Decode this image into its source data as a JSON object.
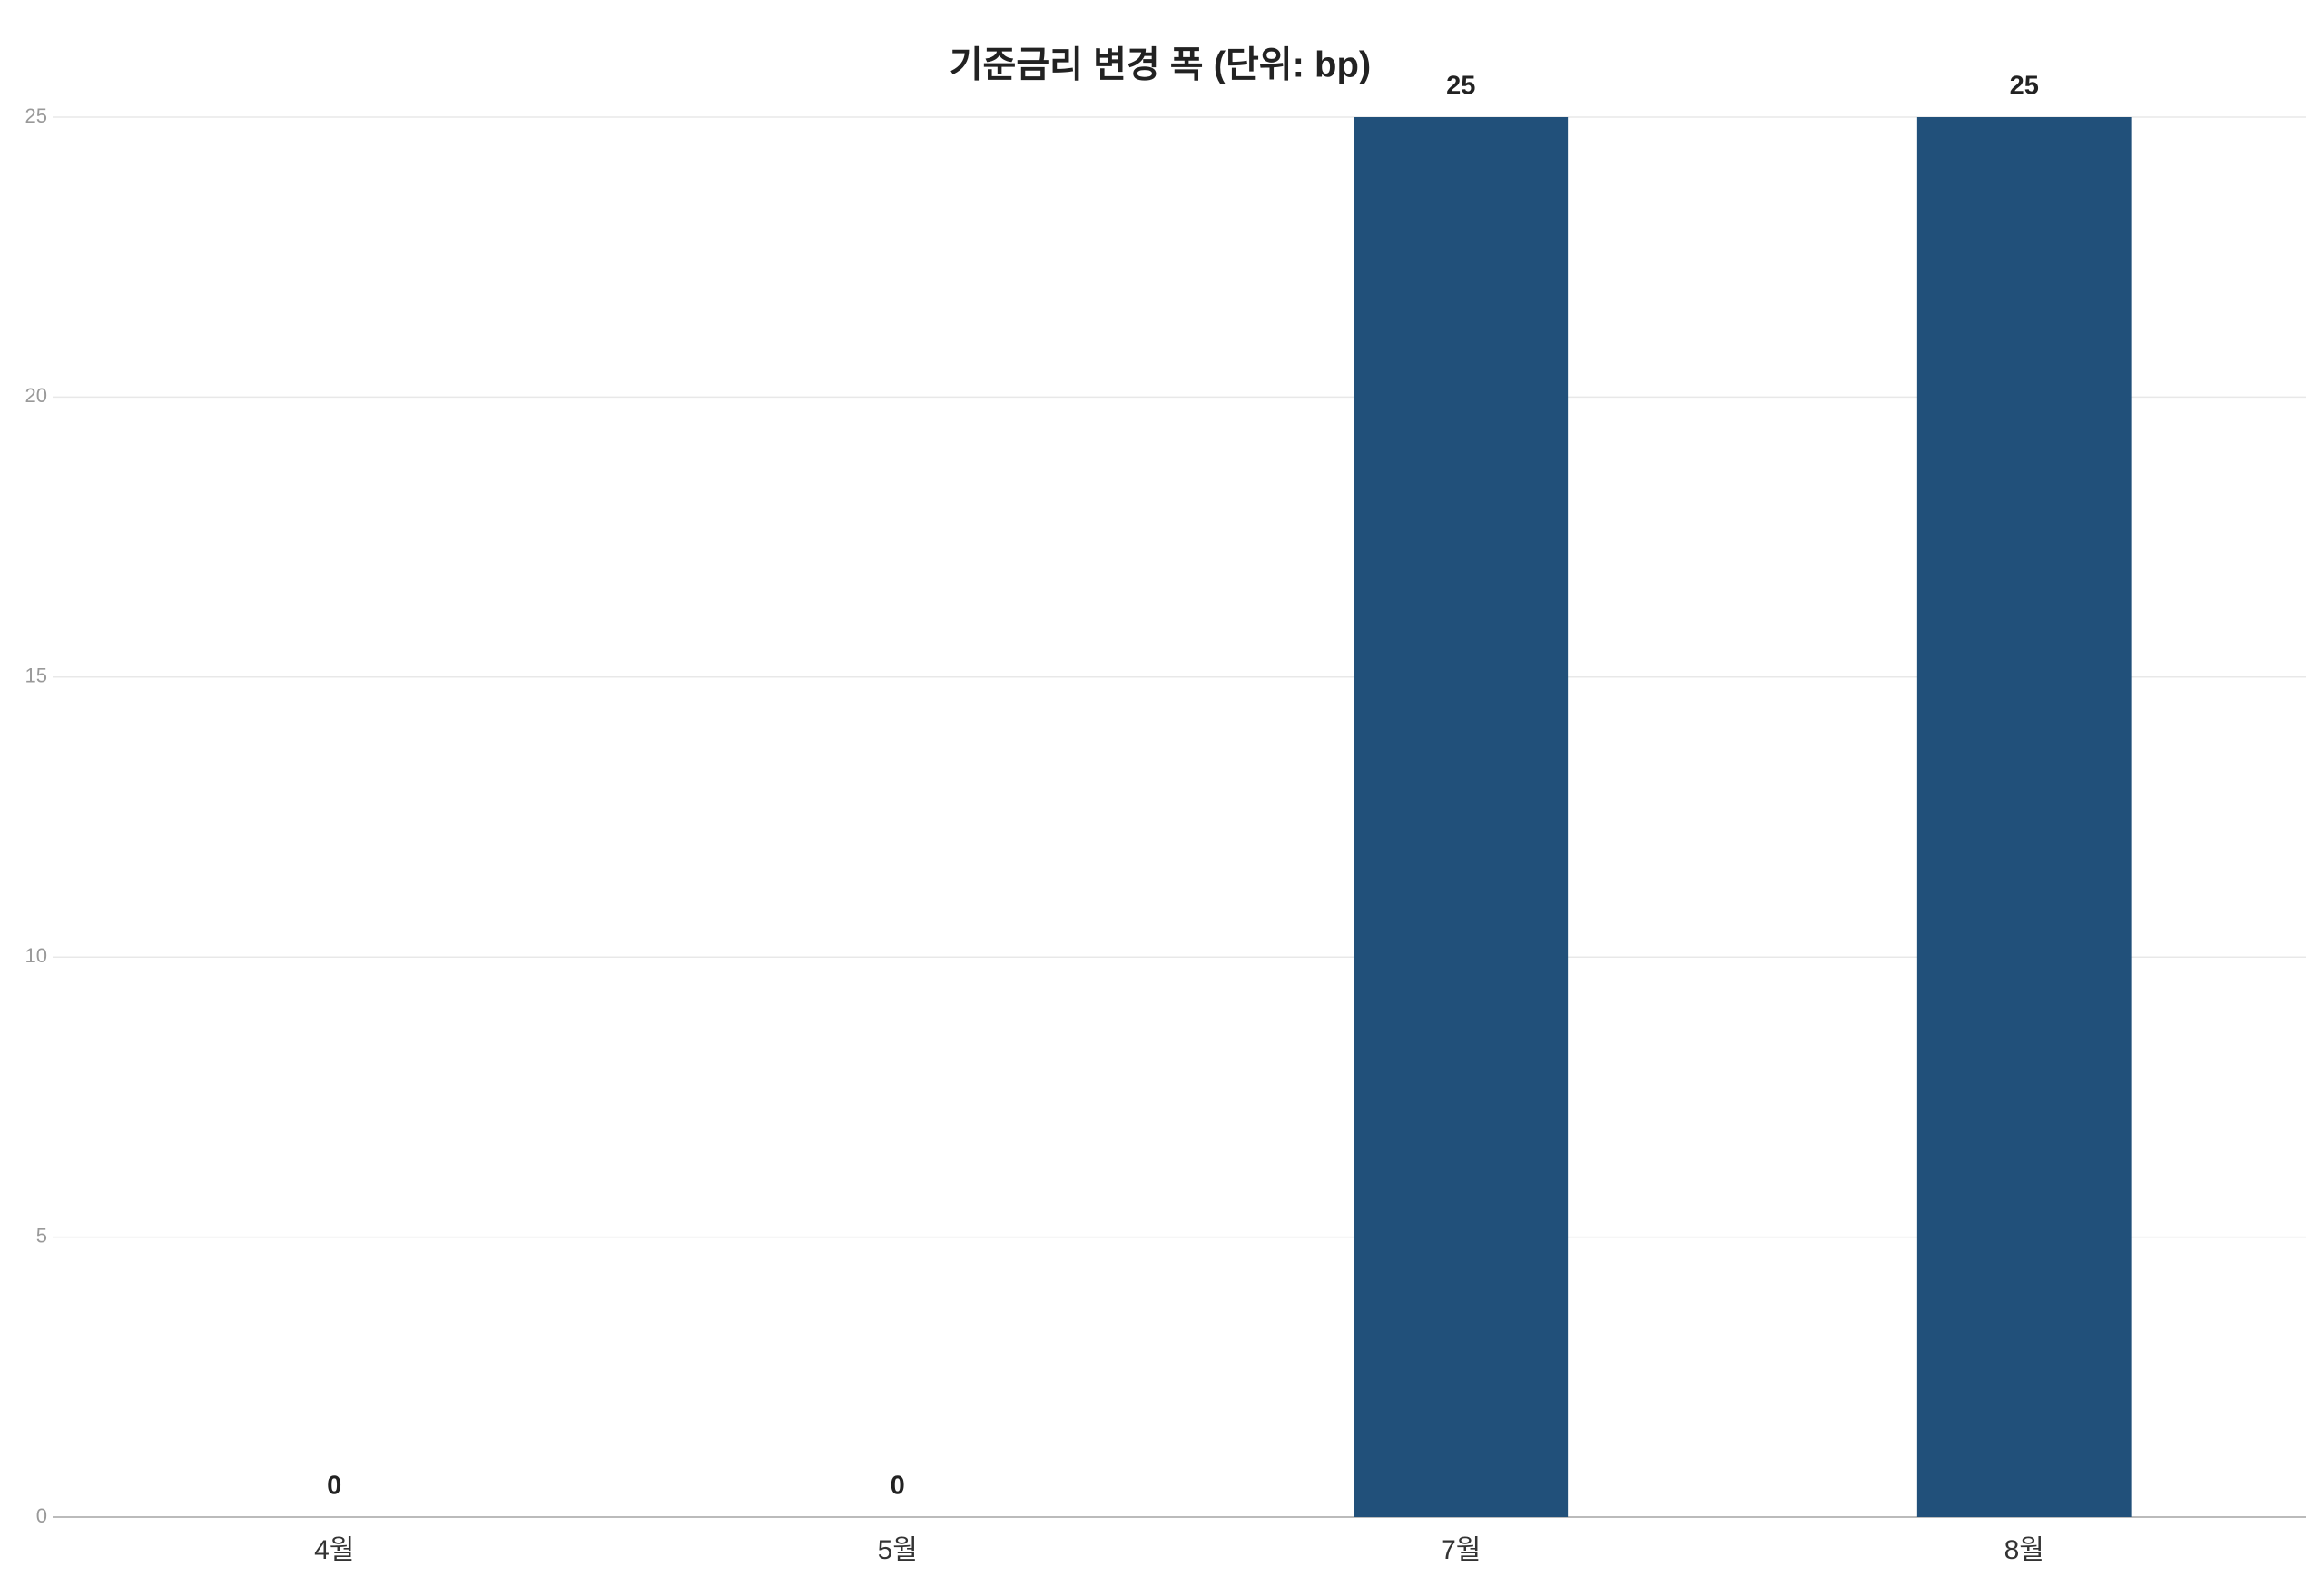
{
  "chart_data": {
    "type": "bar",
    "title": "기준금리 변경 폭 (단위: bp)",
    "categories": [
      "4월",
      "5월",
      "7월",
      "8월"
    ],
    "values": [
      0,
      0,
      25,
      25
    ],
    "color": "#21507a",
    "ylim": [
      0,
      25
    ],
    "yticks": [
      0,
      5,
      10,
      15,
      20,
      25
    ],
    "grid": true
  }
}
